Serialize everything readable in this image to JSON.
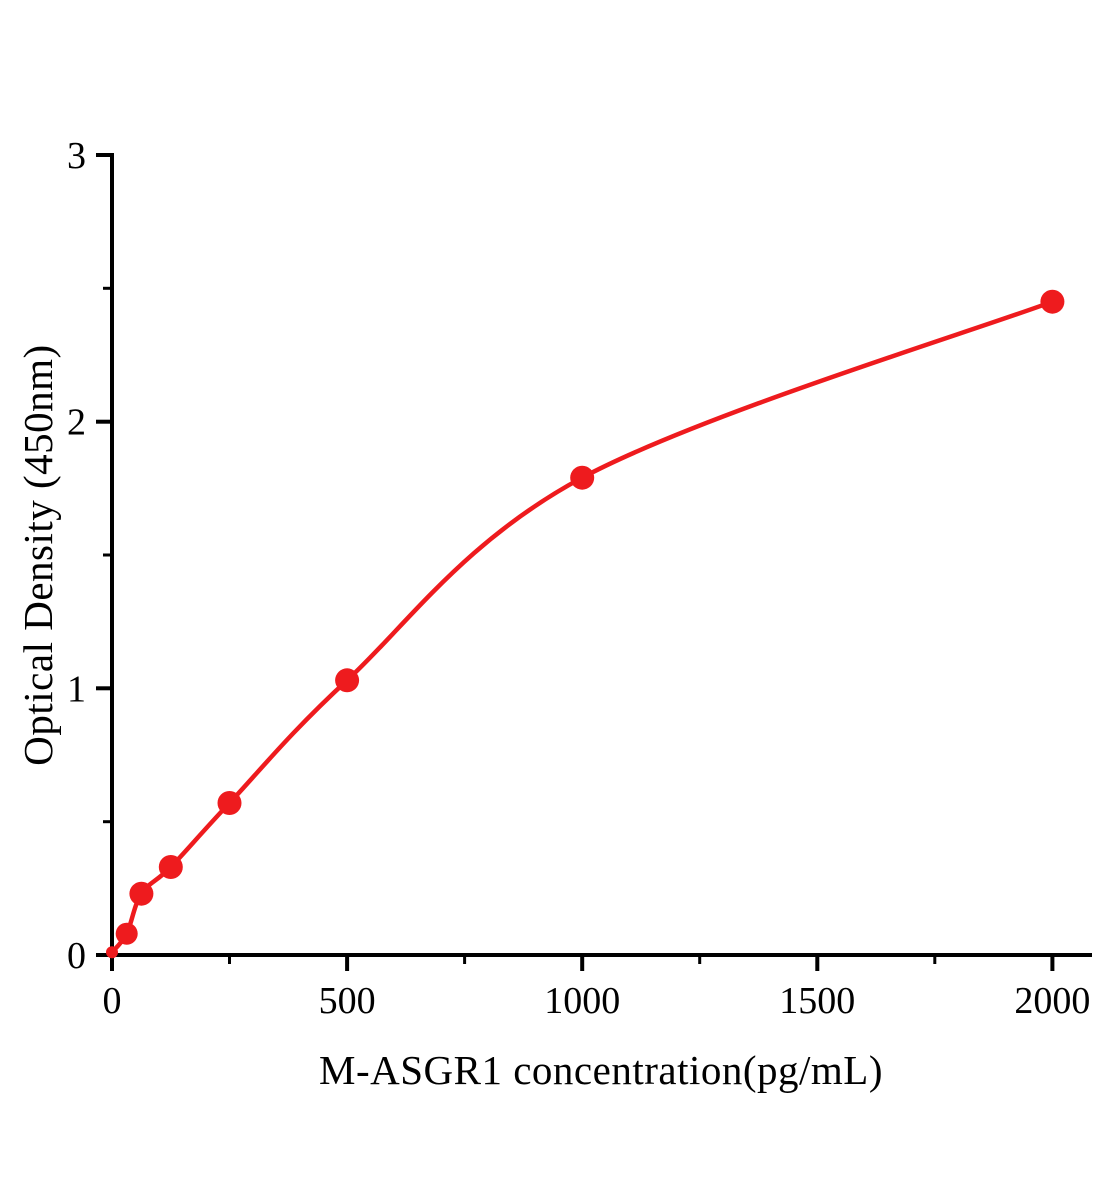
{
  "page": {
    "background": "#ffffff"
  },
  "chart_data": {
    "type": "line",
    "subtype": "scatter-with-fit-curve",
    "title": "",
    "xlabel": "M-ASGR1 concentration(pg/mL)",
    "ylabel": "Optical Density (450nm)",
    "x": [
      0,
      31.25,
      62.5,
      125,
      250,
      500,
      1000,
      2000
    ],
    "y": [
      0.01,
      0.08,
      0.23,
      0.33,
      0.57,
      1.03,
      1.79,
      2.45
    ],
    "marker_sizes": [
      6,
      11,
      12,
      12,
      12,
      12,
      12,
      12
    ],
    "xlim": [
      0,
      2080
    ],
    "ylim": [
      0,
      3
    ],
    "x_major_ticks": [
      0,
      500,
      1000,
      1500,
      2000
    ],
    "x_major_tick_labels": [
      "0",
      "500",
      "1000",
      "1500",
      "2000"
    ],
    "x_minor_ticks": [
      250,
      750,
      1250,
      1750
    ],
    "y_major_ticks": [
      0,
      1,
      2,
      3
    ],
    "y_major_tick_labels": [
      "0",
      "1",
      "2",
      "3"
    ],
    "y_minor_ticks": [
      0.5,
      1.5,
      2.5
    ],
    "grid": false,
    "legend": "none",
    "line_color": "#ee1b1e",
    "marker_color": "#ee1b1e",
    "axis_color": "#000000"
  }
}
